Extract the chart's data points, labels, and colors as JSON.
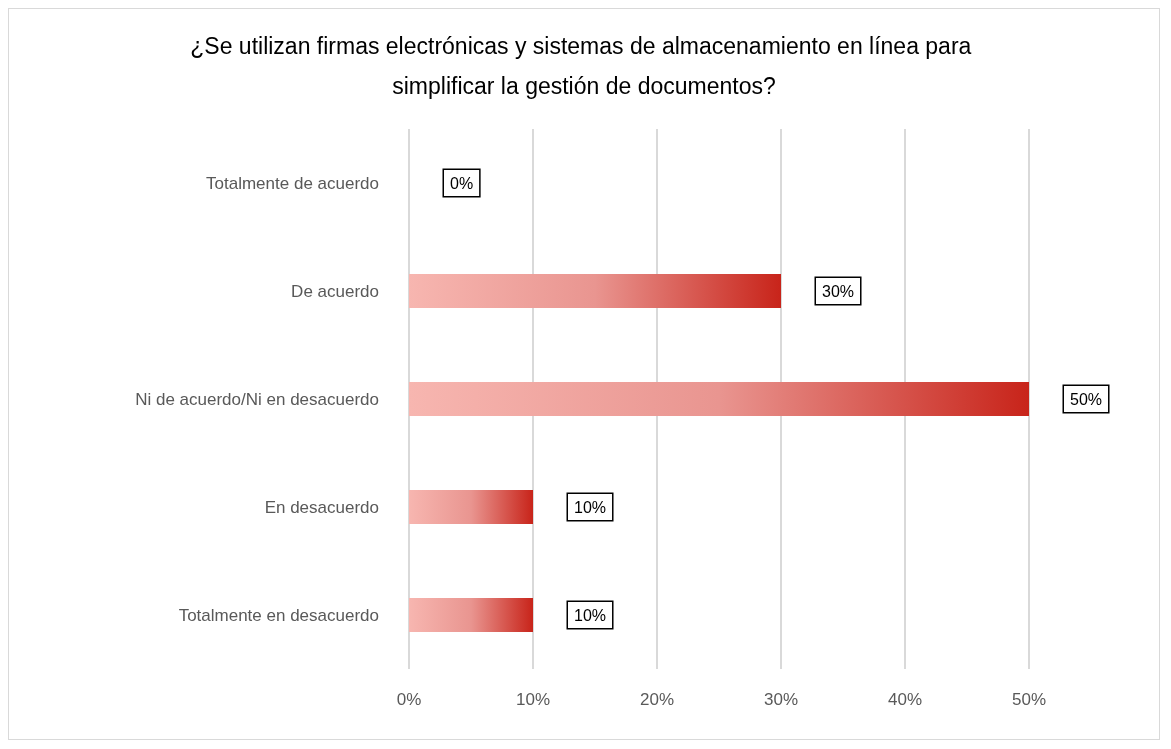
{
  "chart_data": {
    "type": "bar",
    "orientation": "horizontal",
    "title": "¿Se utilizan firmas electrónicas y sistemas de almacenamiento en línea para simplificar la gestión de documentos?",
    "categories": [
      "Totalmente de acuerdo",
      "De acuerdo",
      "Ni de acuerdo/Ni en desacuerdo",
      "En desacuerdo",
      "Totalmente en desacuerdo"
    ],
    "values": [
      0,
      30,
      50,
      10,
      10
    ],
    "value_labels": [
      "0%",
      "30%",
      "50%",
      "10%",
      "10%"
    ],
    "color": "#c8241a",
    "xlim": [
      0,
      50
    ],
    "xticks": [
      {
        "value": 0,
        "label": "0%"
      },
      {
        "value": 10,
        "label": "10%"
      },
      {
        "value": 20,
        "label": "20%"
      },
      {
        "value": 30,
        "label": "30%"
      },
      {
        "value": 40,
        "label": "40%"
      },
      {
        "value": 50,
        "label": "50%"
      }
    ],
    "grid": "x"
  }
}
